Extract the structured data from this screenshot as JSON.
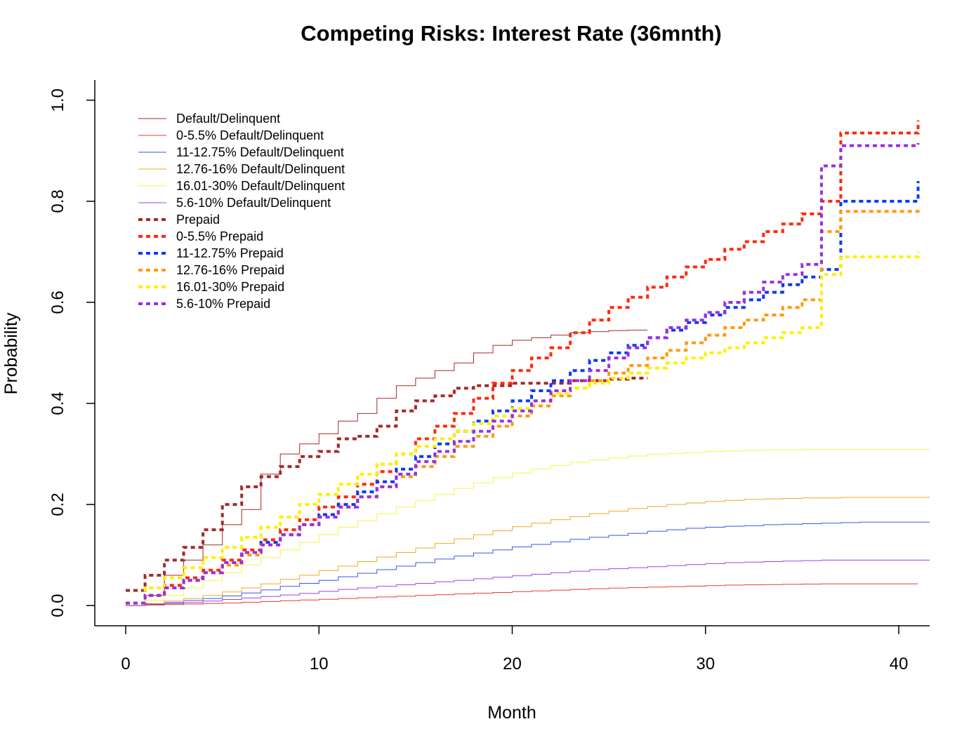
{
  "chart_data": {
    "type": "line",
    "title": "Competing Risks: Interest Rate (36mnth)",
    "xlabel": "Month",
    "ylabel": "Probability",
    "xlim": [
      -1.6,
      41.6
    ],
    "ylim": [
      -0.04,
      1.04
    ],
    "x_ticks": [
      0,
      10,
      20,
      30,
      40
    ],
    "y_ticks": [
      0.0,
      0.2,
      0.4,
      0.6,
      0.8,
      1.0
    ],
    "x_tick_labels": [
      "0",
      "10",
      "20",
      "30",
      "40"
    ],
    "y_tick_labels": [
      "0.0",
      "0.2",
      "0.4",
      "0.6",
      "0.8",
      "1.0"
    ],
    "legend_position": "top-left",
    "grid": false,
    "series": [
      {
        "name": " Default/Delinquent",
        "color": "#a52a2a",
        "dashed": false,
        "width": 1,
        "x": [
          0,
          1,
          2,
          3,
          4,
          5,
          6,
          7,
          8,
          9,
          10,
          11,
          12,
          13,
          14,
          15,
          16,
          17,
          18,
          19,
          20,
          21,
          22,
          23,
          24,
          25,
          26,
          27
        ],
        "y": [
          0.0,
          0.02,
          0.06,
          0.09,
          0.12,
          0.16,
          0.19,
          0.26,
          0.3,
          0.32,
          0.34,
          0.365,
          0.38,
          0.41,
          0.435,
          0.45,
          0.465,
          0.48,
          0.5,
          0.515,
          0.525,
          0.53,
          0.535,
          0.54,
          0.542,
          0.544,
          0.545,
          0.545
        ]
      },
      {
        "name": "0-5.5% Default/Delinquent",
        "color": "#ef3b2c",
        "dashed": false,
        "width": 1,
        "x": [
          0,
          1,
          2,
          3,
          4,
          5,
          6,
          7,
          8,
          9,
          10,
          11,
          12,
          13,
          14,
          15,
          16,
          17,
          18,
          19,
          20,
          21,
          22,
          23,
          24,
          25,
          26,
          27,
          28,
          29,
          30,
          31,
          32,
          33,
          34,
          35,
          36,
          37,
          38,
          39,
          40,
          41
        ],
        "y": [
          0.0,
          0.001,
          0.002,
          0.003,
          0.004,
          0.005,
          0.0065,
          0.008,
          0.0095,
          0.011,
          0.0125,
          0.014,
          0.0155,
          0.017,
          0.0185,
          0.02,
          0.0215,
          0.023,
          0.0245,
          0.026,
          0.0275,
          0.029,
          0.0305,
          0.032,
          0.0335,
          0.0345,
          0.0355,
          0.0365,
          0.0375,
          0.0385,
          0.0395,
          0.0405,
          0.041,
          0.0415,
          0.042,
          0.0425,
          0.043,
          0.043,
          0.043,
          0.043,
          0.043,
          0.043
        ]
      },
      {
        "name": "11-12.75% Default/Delinquent",
        "color": "#3a55ee",
        "dashed": false,
        "width": 1,
        "x": [
          0,
          1,
          2,
          3,
          4,
          5,
          6,
          7,
          8,
          9,
          10,
          11,
          12,
          13,
          14,
          15,
          16,
          17,
          18,
          19,
          20,
          21,
          22,
          23,
          24,
          25,
          26,
          27,
          28,
          29,
          30,
          31,
          32,
          33,
          34,
          35,
          36,
          37,
          38,
          39,
          40,
          41.6
        ],
        "y": [
          0.0,
          0.003,
          0.006,
          0.01,
          0.014,
          0.019,
          0.025,
          0.031,
          0.038,
          0.044,
          0.05,
          0.057,
          0.064,
          0.071,
          0.078,
          0.085,
          0.092,
          0.098,
          0.104,
          0.11,
          0.116,
          0.121,
          0.126,
          0.131,
          0.135,
          0.139,
          0.143,
          0.147,
          0.15,
          0.153,
          0.155,
          0.157,
          0.158,
          0.16,
          0.161,
          0.162,
          0.163,
          0.164,
          0.165,
          0.165,
          0.165,
          0.165
        ]
      },
      {
        "name": "12.76-16% Default/Delinquent",
        "color": "#f5a623",
        "dashed": false,
        "width": 1,
        "x": [
          0,
          1,
          2,
          3,
          4,
          5,
          6,
          7,
          8,
          9,
          10,
          11,
          12,
          13,
          14,
          15,
          16,
          17,
          18,
          19,
          20,
          21,
          22,
          23,
          24,
          25,
          26,
          27,
          28,
          29,
          30,
          31,
          32,
          33,
          34,
          35,
          36,
          37,
          38,
          39,
          40,
          41.6
        ],
        "y": [
          0.0,
          0.004,
          0.009,
          0.014,
          0.02,
          0.027,
          0.035,
          0.043,
          0.052,
          0.06,
          0.069,
          0.078,
          0.087,
          0.096,
          0.105,
          0.114,
          0.123,
          0.132,
          0.14,
          0.148,
          0.156,
          0.163,
          0.17,
          0.176,
          0.182,
          0.187,
          0.192,
          0.196,
          0.2,
          0.203,
          0.206,
          0.208,
          0.21,
          0.211,
          0.212,
          0.213,
          0.213,
          0.214,
          0.214,
          0.214,
          0.214,
          0.214
        ]
      },
      {
        "name": "16.01-30% Default/Delinquent",
        "color": "#f5f542",
        "dashed": false,
        "width": 1,
        "x": [
          0,
          1,
          2,
          3,
          4,
          5,
          6,
          7,
          8,
          9,
          10,
          11,
          12,
          13,
          14,
          15,
          16,
          17,
          18,
          19,
          20,
          21,
          22,
          23,
          24,
          25,
          26,
          27,
          28,
          29,
          30,
          31,
          32,
          33,
          34,
          35,
          36,
          37,
          38,
          39,
          40,
          41.6
        ],
        "y": [
          0.0,
          0.01,
          0.02,
          0.035,
          0.05,
          0.065,
          0.08,
          0.095,
          0.11,
          0.125,
          0.14,
          0.155,
          0.168,
          0.182,
          0.195,
          0.208,
          0.22,
          0.232,
          0.243,
          0.253,
          0.262,
          0.27,
          0.277,
          0.283,
          0.288,
          0.292,
          0.296,
          0.299,
          0.301,
          0.303,
          0.305,
          0.306,
          0.307,
          0.308,
          0.308,
          0.309,
          0.309,
          0.309,
          0.309,
          0.309,
          0.309,
          0.309
        ]
      },
      {
        "name": "5.6-10% Default/Delinquent",
        "color": "#a040ea",
        "dashed": false,
        "width": 1,
        "x": [
          0,
          1,
          2,
          3,
          4,
          5,
          6,
          7,
          8,
          9,
          10,
          11,
          12,
          13,
          14,
          15,
          16,
          17,
          18,
          19,
          20,
          21,
          22,
          23,
          24,
          25,
          26,
          27,
          28,
          29,
          30,
          31,
          32,
          33,
          34,
          35,
          36,
          37,
          38,
          39,
          40,
          41.6
        ],
        "y": [
          0.0,
          0.002,
          0.004,
          0.006,
          0.009,
          0.012,
          0.015,
          0.018,
          0.021,
          0.024,
          0.028,
          0.032,
          0.035,
          0.038,
          0.041,
          0.044,
          0.047,
          0.05,
          0.053,
          0.056,
          0.059,
          0.062,
          0.065,
          0.068,
          0.071,
          0.073,
          0.075,
          0.077,
          0.079,
          0.081,
          0.083,
          0.085,
          0.086,
          0.087,
          0.088,
          0.089,
          0.09,
          0.09,
          0.09,
          0.09,
          0.09,
          0.09
        ]
      },
      {
        "name": " Prepaid",
        "color": "#a52a2a",
        "dashed": true,
        "width": 4,
        "x": [
          0,
          1,
          2,
          3,
          4,
          5,
          6,
          7,
          8,
          9,
          10,
          11,
          12,
          13,
          14,
          15,
          16,
          17,
          18,
          19,
          20,
          21,
          22,
          23,
          24,
          25,
          26,
          27
        ],
        "y": [
          0.03,
          0.06,
          0.09,
          0.115,
          0.15,
          0.2,
          0.235,
          0.255,
          0.275,
          0.295,
          0.305,
          0.33,
          0.335,
          0.355,
          0.385,
          0.405,
          0.415,
          0.43,
          0.435,
          0.435,
          0.44,
          0.44,
          0.44,
          0.445,
          0.445,
          0.448,
          0.45,
          0.45
        ]
      },
      {
        "name": "0-5.5% Prepaid",
        "color": "#ff2a0a",
        "dashed": true,
        "width": 4,
        "x": [
          0,
          1,
          2,
          3,
          4,
          5,
          6,
          7,
          8,
          9,
          10,
          11,
          12,
          13,
          14,
          15,
          16,
          17,
          18,
          19,
          20,
          21,
          22,
          23,
          24,
          25,
          26,
          27,
          28,
          29,
          30,
          31,
          32,
          33,
          34,
          35,
          36,
          37,
          41
        ],
        "y": [
          0.005,
          0.02,
          0.04,
          0.055,
          0.07,
          0.09,
          0.11,
          0.13,
          0.15,
          0.17,
          0.195,
          0.215,
          0.24,
          0.265,
          0.3,
          0.33,
          0.355,
          0.38,
          0.41,
          0.44,
          0.465,
          0.49,
          0.51,
          0.54,
          0.565,
          0.59,
          0.61,
          0.63,
          0.65,
          0.67,
          0.685,
          0.705,
          0.72,
          0.74,
          0.755,
          0.775,
          0.8,
          0.935,
          0.96
        ]
      },
      {
        "name": "11-12.75% Prepaid",
        "color": "#0a3af5",
        "dashed": true,
        "width": 4,
        "x": [
          0,
          1,
          2,
          3,
          4,
          5,
          6,
          7,
          8,
          9,
          10,
          11,
          12,
          13,
          14,
          15,
          16,
          17,
          18,
          19,
          20,
          21,
          22,
          23,
          24,
          25,
          26,
          27,
          28,
          29,
          30,
          31,
          32,
          33,
          34,
          35,
          36,
          37,
          41
        ],
        "y": [
          0.005,
          0.02,
          0.035,
          0.05,
          0.065,
          0.085,
          0.105,
          0.125,
          0.14,
          0.16,
          0.18,
          0.2,
          0.225,
          0.245,
          0.27,
          0.295,
          0.32,
          0.345,
          0.365,
          0.385,
          0.405,
          0.425,
          0.445,
          0.465,
          0.485,
          0.5,
          0.515,
          0.53,
          0.545,
          0.56,
          0.575,
          0.59,
          0.605,
          0.62,
          0.635,
          0.65,
          0.665,
          0.8,
          0.84
        ]
      },
      {
        "name": "12.76-16% Prepaid",
        "color": "#ff9a10",
        "dashed": true,
        "width": 4,
        "x": [
          0,
          1,
          2,
          3,
          4,
          5,
          6,
          7,
          8,
          9,
          10,
          11,
          12,
          13,
          14,
          15,
          16,
          17,
          18,
          19,
          20,
          21,
          22,
          23,
          24,
          25,
          26,
          27,
          28,
          29,
          30,
          31,
          32,
          33,
          34,
          35,
          36,
          37,
          41
        ],
        "y": [
          0.005,
          0.02,
          0.035,
          0.05,
          0.065,
          0.08,
          0.1,
          0.12,
          0.14,
          0.16,
          0.175,
          0.195,
          0.215,
          0.235,
          0.255,
          0.275,
          0.295,
          0.315,
          0.335,
          0.355,
          0.375,
          0.395,
          0.415,
          0.43,
          0.445,
          0.46,
          0.475,
          0.49,
          0.505,
          0.52,
          0.535,
          0.55,
          0.565,
          0.575,
          0.59,
          0.605,
          0.74,
          0.78,
          0.79
        ]
      },
      {
        "name": "16.01-30% Prepaid",
        "color": "#ffef00",
        "dashed": true,
        "width": 4,
        "x": [
          0,
          1,
          2,
          3,
          4,
          5,
          6,
          7,
          8,
          9,
          10,
          11,
          12,
          13,
          14,
          15,
          16,
          17,
          18,
          19,
          20,
          21,
          22,
          23,
          24,
          25,
          26,
          27,
          28,
          29,
          30,
          31,
          32,
          33,
          34,
          35,
          36,
          37,
          41
        ],
        "y": [
          0.005,
          0.035,
          0.055,
          0.075,
          0.095,
          0.115,
          0.135,
          0.155,
          0.175,
          0.2,
          0.22,
          0.24,
          0.26,
          0.28,
          0.3,
          0.315,
          0.33,
          0.345,
          0.36,
          0.375,
          0.39,
          0.405,
          0.42,
          0.43,
          0.44,
          0.45,
          0.46,
          0.47,
          0.48,
          0.49,
          0.5,
          0.51,
          0.52,
          0.53,
          0.54,
          0.55,
          0.655,
          0.69,
          0.7
        ]
      },
      {
        "name": "5.6-10% Prepaid",
        "color": "#9a2fe0",
        "dashed": true,
        "width": 4,
        "x": [
          0,
          1,
          2,
          3,
          4,
          5,
          6,
          7,
          8,
          9,
          10,
          11,
          12,
          13,
          14,
          15,
          16,
          17,
          18,
          19,
          20,
          21,
          22,
          23,
          24,
          25,
          26,
          27,
          28,
          29,
          30,
          31,
          32,
          33,
          34,
          35,
          36,
          37,
          41
        ],
        "y": [
          0.005,
          0.02,
          0.035,
          0.05,
          0.065,
          0.085,
          0.105,
          0.12,
          0.14,
          0.16,
          0.175,
          0.195,
          0.215,
          0.235,
          0.26,
          0.285,
          0.305,
          0.325,
          0.345,
          0.365,
          0.385,
          0.405,
          0.425,
          0.445,
          0.465,
          0.49,
          0.51,
          0.53,
          0.55,
          0.565,
          0.58,
          0.6,
          0.62,
          0.64,
          0.655,
          0.675,
          0.87,
          0.91,
          0.915
        ]
      }
    ]
  }
}
